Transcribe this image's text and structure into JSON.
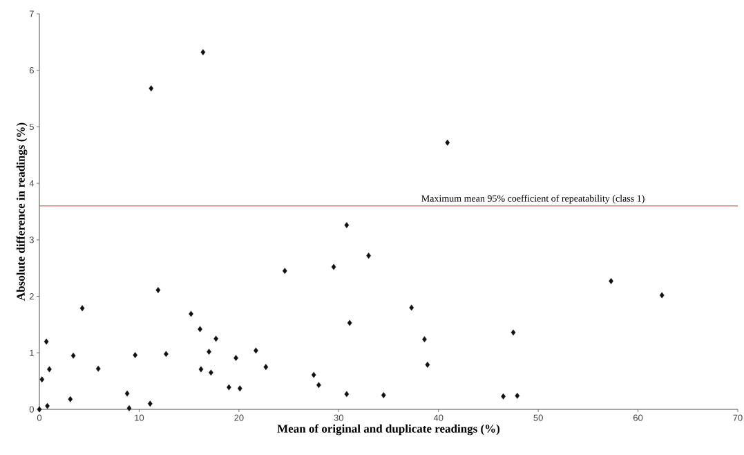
{
  "chart_data": {
    "type": "scatter",
    "xlabel": "Mean of original and duplicate readings (%)",
    "ylabel": "Absolute difference in readings (%)",
    "x": [
      0,
      0.26,
      0.7,
      0.8,
      1.0,
      3.1,
      3.4,
      4.3,
      5.9,
      8.8,
      9.0,
      9.6,
      11.1,
      11.9,
      12.7,
      15.2,
      16.1,
      16.2,
      17.0,
      17.2,
      17.7,
      19.0,
      19.7,
      20.1,
      21.7,
      22.7,
      24.6,
      27.5,
      28.0,
      29.5,
      30.8,
      31.1,
      34.5,
      37.3,
      38.6,
      38.9,
      46.5,
      47.5,
      47.9,
      57.3,
      62.4,
      11.2,
      16.4,
      40.9,
      30.8,
      33.0
    ],
    "values": [
      0,
      0.53,
      1.2,
      0.06,
      0.71,
      0.18,
      0.95,
      1.79,
      0.72,
      0.28,
      0.02,
      0.96,
      0.1,
      2.11,
      0.98,
      1.69,
      1.42,
      0.71,
      1.02,
      0.65,
      1.25,
      0.39,
      0.91,
      0.37,
      1.04,
      0.75,
      2.45,
      0.61,
      0.43,
      2.52,
      0.27,
      1.53,
      0.25,
      1.8,
      1.24,
      0.79,
      0.23,
      1.36,
      0.24,
      2.27,
      2.02,
      5.68,
      6.32,
      4.72,
      3.26,
      2.72
    ],
    "color": "#111111",
    "marker": "diamond",
    "xlim": [
      0,
      70
    ],
    "ylim": [
      0,
      7
    ],
    "xticks": [
      0,
      10,
      20,
      30,
      40,
      50,
      60,
      70
    ],
    "yticks": [
      0,
      1,
      2,
      3,
      4,
      5,
      6,
      7
    ],
    "ref_lines": [
      {
        "axis": "y",
        "value": 3.6,
        "label": "Maximum mean 95% coefficient of repeatability (class 1)",
        "color": "#e03020"
      }
    ]
  }
}
